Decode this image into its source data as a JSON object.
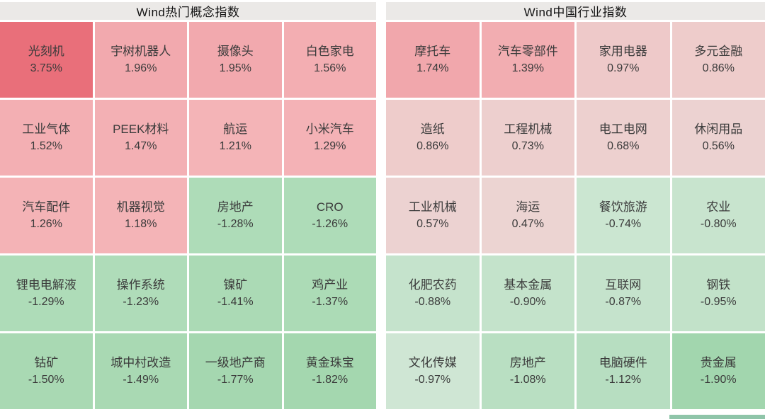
{
  "panels": [
    {
      "title": "Wind热门概念指数",
      "cells": [
        {
          "name": "光刻机",
          "value": "3.75%",
          "color": "#e96f7a"
        },
        {
          "name": "宇树机器人",
          "value": "1.96%",
          "color": "#f2a9ae"
        },
        {
          "name": "摄像头",
          "value": "1.95%",
          "color": "#f2a9ae"
        },
        {
          "name": "白色家电",
          "value": "1.56%",
          "color": "#f3aeb2"
        },
        {
          "name": "工业气体",
          "value": "1.52%",
          "color": "#f3afb3"
        },
        {
          "name": "PEEK材料",
          "value": "1.47%",
          "color": "#f3b0b4"
        },
        {
          "name": "航运",
          "value": "1.21%",
          "color": "#f4b4b7"
        },
        {
          "name": "小米汽车",
          "value": "1.29%",
          "color": "#f4b2b6"
        },
        {
          "name": "汽车配件",
          "value": "1.26%",
          "color": "#f4b3b6"
        },
        {
          "name": "机器视觉",
          "value": "1.18%",
          "color": "#f4b4b7"
        },
        {
          "name": "房地产",
          "value": "-1.28%",
          "color": "#aedcb8"
        },
        {
          "name": "CRO",
          "value": "-1.26%",
          "color": "#aedcb8"
        },
        {
          "name": "锂电电解液",
          "value": "-1.29%",
          "color": "#aedcb8"
        },
        {
          "name": "操作系统",
          "value": "-1.23%",
          "color": "#afdcb9"
        },
        {
          "name": "镍矿",
          "value": "-1.41%",
          "color": "#abdab5"
        },
        {
          "name": "鸡产业",
          "value": "-1.37%",
          "color": "#acdbb6"
        },
        {
          "name": "钴矿",
          "value": "-1.50%",
          "color": "#a9d9b3"
        },
        {
          "name": "城中村改造",
          "value": "-1.49%",
          "color": "#a9d9b3"
        },
        {
          "name": "一级地产商",
          "value": "-1.77%",
          "color": "#a5d7b0"
        },
        {
          "name": "黄金珠宝",
          "value": "-1.82%",
          "color": "#a4d7af"
        }
      ]
    },
    {
      "title": "Wind中国行业指数",
      "cells": [
        {
          "name": "摩托车",
          "value": "1.74%",
          "color": "#f1a7ac"
        },
        {
          "name": "汽车零部件",
          "value": "1.39%",
          "color": "#f2adb1"
        },
        {
          "name": "家用电器",
          "value": "0.97%",
          "color": "#eec9c9"
        },
        {
          "name": "多元金融",
          "value": "0.86%",
          "color": "#eecccb"
        },
        {
          "name": "造纸",
          "value": "0.86%",
          "color": "#eecccb"
        },
        {
          "name": "工程机械",
          "value": "0.73%",
          "color": "#edcfce"
        },
        {
          "name": "电工电网",
          "value": "0.68%",
          "color": "#edd0cf"
        },
        {
          "name": "休闲用品",
          "value": "0.56%",
          "color": "#ecd2d1"
        },
        {
          "name": "工业机械",
          "value": "0.57%",
          "color": "#ecd2d1"
        },
        {
          "name": "海运",
          "value": "0.47%",
          "color": "#ecd4d2"
        },
        {
          "name": "餐饮旅游",
          "value": "-0.74%",
          "color": "#cbe6d1"
        },
        {
          "name": "农业",
          "value": "-0.80%",
          "color": "#c8e4ce"
        },
        {
          "name": "化肥农药",
          "value": "-0.88%",
          "color": "#c5e3cc"
        },
        {
          "name": "基本金属",
          "value": "-0.90%",
          "color": "#c4e3cb"
        },
        {
          "name": "互联网",
          "value": "-0.87%",
          "color": "#c5e3cc"
        },
        {
          "name": "钢铁",
          "value": "-0.95%",
          "color": "#c2e2c9"
        },
        {
          "name": "文化传媒",
          "value": "-0.97%",
          "color": "#cfe6d4"
        },
        {
          "name": "房地产",
          "value": "-1.08%",
          "color": "#b9dfc2"
        },
        {
          "name": "电脑硬件",
          "value": "-1.12%",
          "color": "#b7dec1"
        },
        {
          "name": "贵金属",
          "value": "-1.90%",
          "color": "#a2d6ae"
        }
      ]
    }
  ],
  "accents": {
    "positive_strong": "#e96f7a",
    "positive_light": "#f4b4b7",
    "negative_strong": "#a2d6ae",
    "negative_light": "#cfe6d4",
    "header_bg": "#ebe9e7",
    "bottom_strip_color": "#8fc5a9"
  },
  "chart_data": [
    {
      "type": "heatmap",
      "title": "Wind热门概念指数",
      "rows": 5,
      "columns": 4,
      "value_unit": "%",
      "color_rule": "red/pink = positive change, green = negative change; saturation scales with magnitude",
      "items": [
        {
          "label": "光刻机",
          "pct": 3.75
        },
        {
          "label": "宇树机器人",
          "pct": 1.96
        },
        {
          "label": "摄像头",
          "pct": 1.95
        },
        {
          "label": "白色家电",
          "pct": 1.56
        },
        {
          "label": "工业气体",
          "pct": 1.52
        },
        {
          "label": "PEEK材料",
          "pct": 1.47
        },
        {
          "label": "航运",
          "pct": 1.21
        },
        {
          "label": "小米汽车",
          "pct": 1.29
        },
        {
          "label": "汽车配件",
          "pct": 1.26
        },
        {
          "label": "机器视觉",
          "pct": 1.18
        },
        {
          "label": "房地产",
          "pct": -1.28
        },
        {
          "label": "CRO",
          "pct": -1.26
        },
        {
          "label": "锂电电解液",
          "pct": -1.29
        },
        {
          "label": "操作系统",
          "pct": -1.23
        },
        {
          "label": "镍矿",
          "pct": -1.41
        },
        {
          "label": "鸡产业",
          "pct": -1.37
        },
        {
          "label": "钴矿",
          "pct": -1.5
        },
        {
          "label": "城中村改造",
          "pct": -1.49
        },
        {
          "label": "一级地产商",
          "pct": -1.77
        },
        {
          "label": "黄金珠宝",
          "pct": -1.82
        }
      ]
    },
    {
      "type": "heatmap",
      "title": "Wind中国行业指数",
      "rows": 5,
      "columns": 4,
      "value_unit": "%",
      "color_rule": "red/pink = positive change, green = negative change; saturation scales with magnitude",
      "items": [
        {
          "label": "摩托车",
          "pct": 1.74
        },
        {
          "label": "汽车零部件",
          "pct": 1.39
        },
        {
          "label": "家用电器",
          "pct": 0.97
        },
        {
          "label": "多元金融",
          "pct": 0.86
        },
        {
          "label": "造纸",
          "pct": 0.86
        },
        {
          "label": "工程机械",
          "pct": 0.73
        },
        {
          "label": "电工电网",
          "pct": 0.68
        },
        {
          "label": "休闲用品",
          "pct": 0.56
        },
        {
          "label": "工业机械",
          "pct": 0.57
        },
        {
          "label": "海运",
          "pct": 0.47
        },
        {
          "label": "餐饮旅游",
          "pct": -0.74
        },
        {
          "label": "农业",
          "pct": -0.8
        },
        {
          "label": "化肥农药",
          "pct": -0.88
        },
        {
          "label": "基本金属",
          "pct": -0.9
        },
        {
          "label": "互联网",
          "pct": -0.87
        },
        {
          "label": "钢铁",
          "pct": -0.95
        },
        {
          "label": "文化传媒",
          "pct": -0.97
        },
        {
          "label": "房地产",
          "pct": -1.08
        },
        {
          "label": "电脑硬件",
          "pct": -1.12
        },
        {
          "label": "贵金属",
          "pct": -1.9
        }
      ]
    }
  ]
}
